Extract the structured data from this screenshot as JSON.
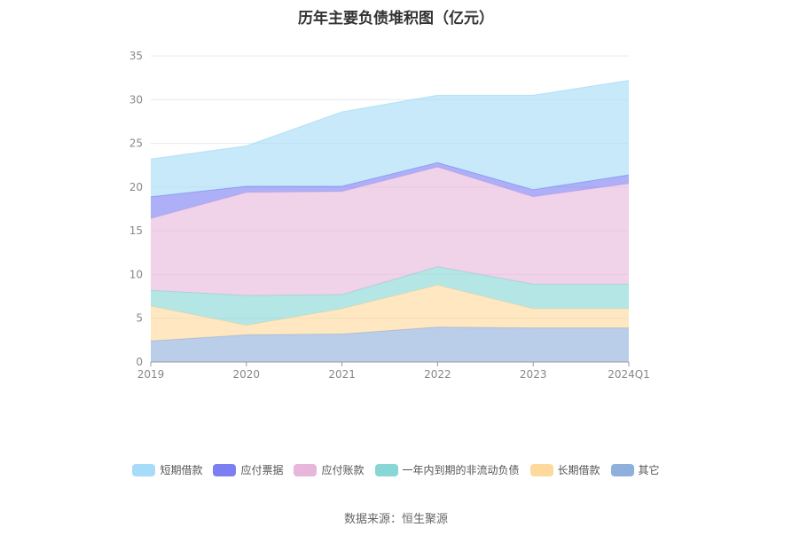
{
  "chart_data": {
    "type": "area",
    "stacked": true,
    "title": "历年主要负债堆积图（亿元）",
    "categories": [
      "2019",
      "2020",
      "2021",
      "2022",
      "2023",
      "2024Q1"
    ],
    "ylim": [
      0,
      35
    ],
    "yticks": [
      0,
      5,
      10,
      15,
      20,
      25,
      30,
      35
    ],
    "grid": true,
    "legend_position": "bottom",
    "series": [
      {
        "name": "其它",
        "color": "#8fb0dd",
        "values": [
          2.4,
          3.1,
          3.2,
          4.0,
          3.9,
          3.9
        ]
      },
      {
        "name": "长期借款",
        "color": "#fdd99b",
        "values": [
          4.0,
          1.1,
          2.9,
          4.8,
          2.2,
          2.2
        ]
      },
      {
        "name": "一年内到期的非流动负债",
        "color": "#88d6d6",
        "values": [
          1.8,
          3.4,
          1.6,
          2.1,
          2.8,
          2.8
        ]
      },
      {
        "name": "应付账款",
        "color": "#e6b7db",
        "values": [
          8.2,
          11.8,
          11.8,
          11.4,
          10.0,
          11.5
        ]
      },
      {
        "name": "应付票据",
        "color": "#7b7ff2",
        "values": [
          2.5,
          0.7,
          0.6,
          0.5,
          0.8,
          1.0
        ]
      },
      {
        "name": "短期借款",
        "color": "#a6dcf7",
        "values": [
          4.3,
          4.6,
          8.5,
          7.7,
          10.8,
          10.8
        ]
      }
    ],
    "legend_order": [
      "短期借款",
      "应付票据",
      "应付账款",
      "一年内到期的非流动负债",
      "长期借款",
      "其它"
    ]
  },
  "source": "数据来源：恒生聚源"
}
